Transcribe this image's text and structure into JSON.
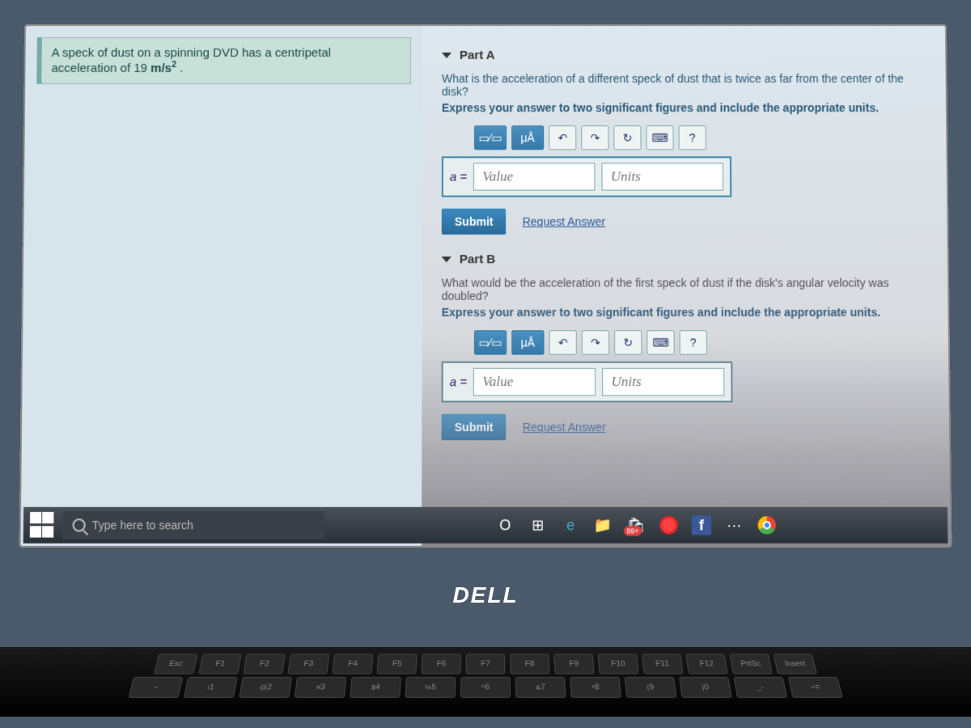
{
  "problem": {
    "line1": "A speck of dust on a spinning DVD has a centripetal",
    "line2_prefix": "acceleration of 19 ",
    "line2_unit": "m/s",
    "line2_exp": "2",
    "line2_suffix": " ."
  },
  "partA": {
    "title": "Part A",
    "question": "What is the acceleration of a different speck of dust that is twice as far from the center of the disk?",
    "instruction": "Express your answer to two significant figures and include the appropriate units.",
    "eq_label": "a =",
    "value_placeholder": "Value",
    "units_placeholder": "Units",
    "submit": "Submit",
    "request": "Request Answer",
    "toolbar": {
      "templates": "▭⁄▭",
      "special": "μÅ",
      "undo": "↶",
      "redo": "↷",
      "reset": "↻",
      "keyboard": "⌨",
      "help": "?"
    }
  },
  "partB": {
    "title": "Part B",
    "question": "What would be the acceleration of the first speck of dust if the disk's angular velocity was doubled?",
    "instruction": "Express your answer to two significant figures and include the appropriate units.",
    "eq_label": "a =",
    "value_placeholder": "Value",
    "units_placeholder": "Units",
    "submit": "Submit",
    "request": "Request Answer",
    "toolbar": {
      "templates": "▭⁄▭",
      "special": "μÅ",
      "undo": "↶",
      "redo": "↷",
      "reset": "↻",
      "keyboard": "⌨",
      "help": "?"
    }
  },
  "taskbar": {
    "search_placeholder": "Type here to search",
    "cortana": "O",
    "taskview": "⊞",
    "edge": "e",
    "files": "📁",
    "store_badge": "99+",
    "opera_label": "O",
    "fb": "f",
    "misc": "⋯"
  },
  "laptop": {
    "brand": "DELL"
  },
  "keys_row1": [
    "Esc",
    "F1",
    "F2",
    "F3",
    "F4",
    "F5",
    "F6",
    "F7",
    "F8",
    "F9",
    "F10",
    "F11",
    "F12",
    "PrtSc",
    "Insert"
  ],
  "keys_row2": [
    "~",
    "!",
    "@",
    "#",
    "$",
    "%",
    "^",
    "&",
    "*",
    "(",
    ")",
    "_",
    "+"
  ],
  "keys_row2_nums": [
    "",
    "1",
    "2",
    "3",
    "4",
    "5",
    "6",
    "7",
    "8",
    "9",
    "0",
    "-",
    "="
  ]
}
